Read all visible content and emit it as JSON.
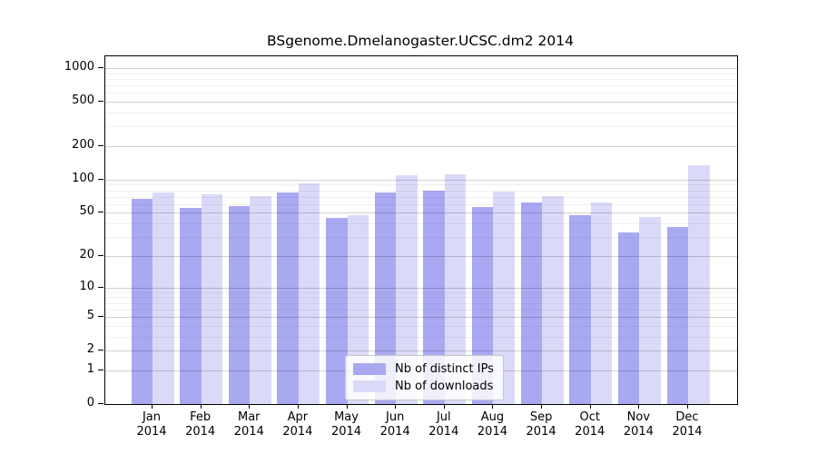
{
  "title": "BSgenome.Dmelanogaster.UCSC.dm2 2014",
  "chart_data": {
    "type": "bar",
    "title": "BSgenome.Dmelanogaster.UCSC.dm2 2014",
    "categories": [
      "Jan",
      "Feb",
      "Mar",
      "Apr",
      "May",
      "Jun",
      "Jul",
      "Aug",
      "Sep",
      "Oct",
      "Nov",
      "Dec"
    ],
    "category_year": "2014",
    "series": [
      {
        "name": "Nb of distinct IPs",
        "color": "#a9a9f2",
        "values": [
          67,
          55,
          58,
          77,
          45,
          76,
          79,
          57,
          62,
          48,
          33,
          37
        ]
      },
      {
        "name": "Nb of downloads",
        "color": "#dadaf8",
        "values": [
          77,
          74,
          71,
          93,
          48,
          109,
          112,
          78,
          71,
          62,
          46,
          136
        ]
      }
    ],
    "y_scale": "log10(1+x)",
    "y_ticks": [
      0,
      1,
      2,
      5,
      10,
      20,
      50,
      100,
      200,
      500,
      1000
    ],
    "y_minor_ticks": [
      3,
      4,
      6,
      7,
      8,
      9,
      30,
      40,
      60,
      70,
      80,
      90,
      300,
      400,
      600,
      700,
      800,
      900
    ],
    "ylim": [
      0,
      1276
    ],
    "grid": true,
    "legend_position": "bottom-center"
  },
  "colors": {
    "bar_distinct_ips": "#a9a9f2",
    "bar_downloads": "#dadaf8",
    "grid_major": "#cfcfcf",
    "grid_minor": "#ececec",
    "frame": "#000000"
  }
}
